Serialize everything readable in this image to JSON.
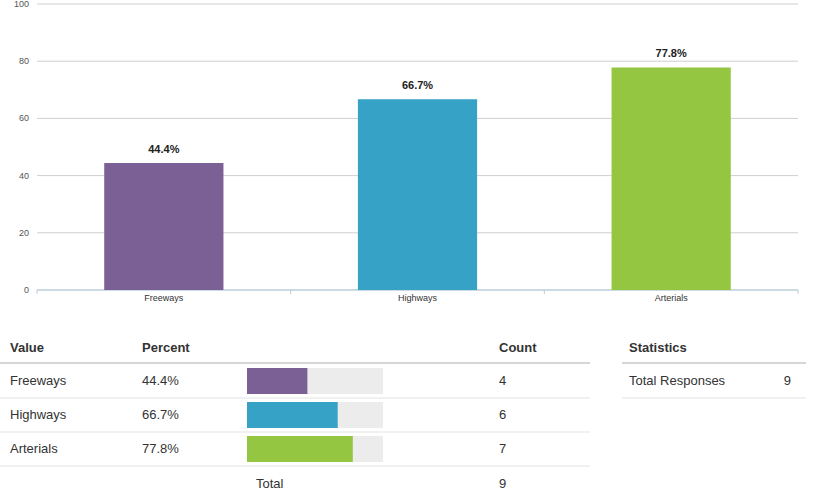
{
  "chart_data": {
    "type": "bar",
    "categories": [
      "Freeways",
      "Highways",
      "Arterials"
    ],
    "values": [
      44.4,
      66.7,
      77.8
    ],
    "value_labels": [
      "44.4%",
      "66.7%",
      "77.8%"
    ],
    "colors": [
      "#7b6096",
      "#36a3c6",
      "#95c641"
    ],
    "ylim": [
      0,
      100
    ],
    "yticks": [
      0,
      20,
      40,
      60,
      80,
      100
    ],
    "grid": true,
    "data_labels": true
  },
  "table": {
    "columns": [
      "Value",
      "Percent",
      "Count"
    ],
    "rows": [
      {
        "value": "Freeways",
        "percent": "44.4%",
        "count": 4
      },
      {
        "value": "Highways",
        "percent": "66.7%",
        "count": 6
      },
      {
        "value": "Arterials",
        "percent": "77.8%",
        "count": 7
      }
    ],
    "total": {
      "label": "Total",
      "count": 9
    }
  },
  "statistics": {
    "title": "Statistics",
    "rows": [
      {
        "label": "Total Responses",
        "value": 9
      }
    ]
  }
}
